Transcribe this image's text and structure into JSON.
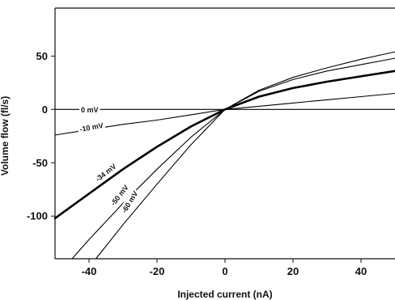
{
  "chart_data": {
    "type": "line",
    "title": "",
    "xlabel": "Injected current (nA)",
    "ylabel": "Volume flow (fl/s)",
    "xlim": [
      -50,
      50
    ],
    "ylim": [
      -140,
      95
    ],
    "xticks": [
      -40,
      -20,
      0,
      20,
      40
    ],
    "yticks": [
      -100,
      -50,
      0,
      50
    ],
    "grid": false,
    "series": [
      {
        "name": "0 mV",
        "x": [
          -50,
          50
        ],
        "y": [
          0,
          0
        ],
        "bold": false
      },
      {
        "name": "-10 mV",
        "x": [
          -50,
          -40,
          -30,
          -20,
          -10,
          0,
          10,
          20,
          30,
          40,
          50
        ],
        "y": [
          -24,
          -19,
          -14,
          -10,
          -5,
          0,
          3,
          6,
          9,
          12,
          15
        ],
        "bold": false
      },
      {
        "name": "-34 mV",
        "x": [
          -50,
          -40,
          -30,
          -20,
          -10,
          0,
          10,
          20,
          30,
          40,
          50
        ],
        "y": [
          -102,
          -79,
          -56,
          -35,
          -16,
          0,
          12,
          20,
          26,
          31,
          36
        ],
        "bold": true
      },
      {
        "name": "-50 mV",
        "x": [
          -45,
          -40,
          -30,
          -20,
          -10,
          0,
          10,
          20,
          30,
          40,
          50
        ],
        "y": [
          -140,
          -122,
          -88,
          -56,
          -26,
          0,
          17,
          28,
          36,
          42,
          48
        ],
        "bold": false
      },
      {
        "name": "-60 mV",
        "x": [
          -38,
          -30,
          -20,
          -10,
          0,
          10,
          20,
          30,
          40,
          50
        ],
        "y": [
          -140,
          -108,
          -70,
          -33,
          0,
          18,
          30,
          39,
          47,
          54
        ],
        "bold": false
      }
    ],
    "curve_labels": [
      "0 mV",
      "-10 mV",
      "-34 mV",
      "-50 mV",
      "-60 mV"
    ]
  }
}
